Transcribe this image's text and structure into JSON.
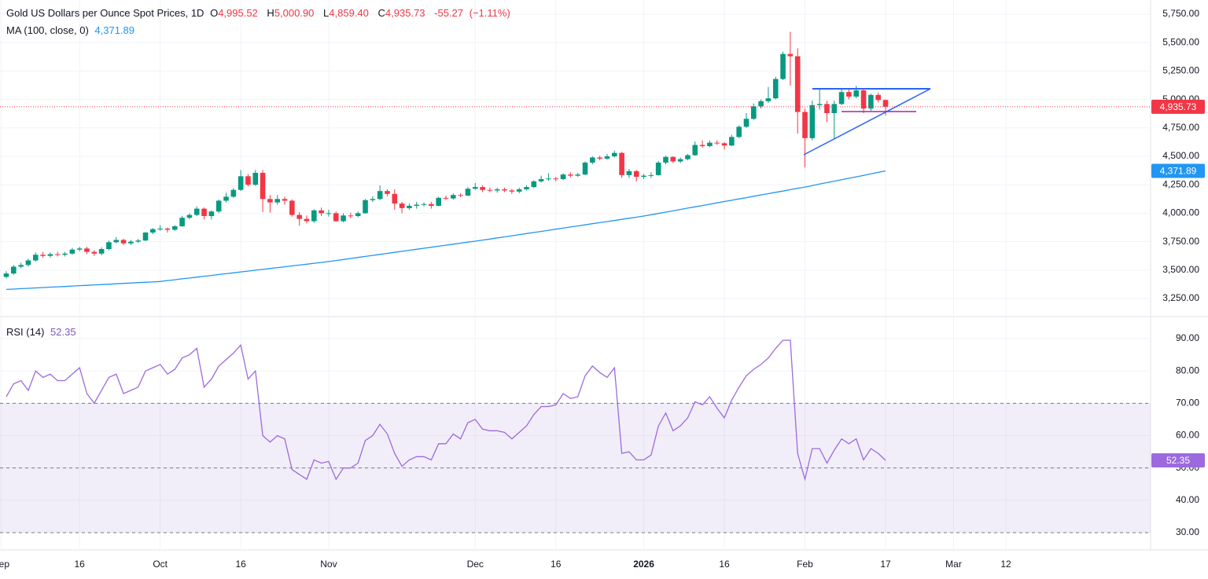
{
  "time_axis": {
    "x": [
      "Sep 2",
      "Sep 3",
      "Sep 4",
      "Sep 5",
      "Sep 8",
      "Sep 9",
      "Sep 10",
      "Sep 11",
      "Sep 12",
      "Sep 15",
      "Sep 16",
      "Sep 17",
      "Sep 18",
      "Sep 19",
      "Sep 22",
      "Sep 23",
      "Sep 24",
      "Sep 25",
      "Sep 26",
      "Sep 29",
      "Sep 30",
      "Oct 1",
      "Oct 2",
      "Oct 3",
      "Oct 6",
      "Oct 7",
      "Oct 8",
      "Oct 9",
      "Oct 10",
      "Oct 13",
      "Oct 14",
      "Oct 15",
      "Oct 16",
      "Oct 17",
      "Oct 20",
      "Oct 21",
      "Oct 22",
      "Oct 23",
      "Oct 24",
      "Oct 27",
      "Oct 28",
      "Oct 29",
      "Oct 30",
      "Oct 31",
      "Nov 3",
      "Nov 4",
      "Nov 5",
      "Nov 6",
      "Nov 7",
      "Nov 10",
      "Nov 11",
      "Nov 12",
      "Nov 13",
      "Nov 14",
      "Nov 17",
      "Nov 18",
      "Nov 19",
      "Nov 20",
      "Nov 21",
      "Nov 24",
      "Nov 25",
      "Nov 26",
      "Nov 27",
      "Nov 28",
      "Dec 1",
      "Dec 2",
      "Dec 3",
      "Dec 4",
      "Dec 5",
      "Dec 8",
      "Dec 9",
      "Dec 10",
      "Dec 11",
      "Dec 12",
      "Dec 15",
      "Dec 16",
      "Dec 17",
      "Dec 18",
      "Dec 19",
      "Dec 22",
      "Dec 23",
      "Dec 24",
      "Dec 25",
      "Dec 26",
      "Dec 29",
      "Dec 30",
      "Dec 31",
      "Jan 1",
      "Jan 2",
      "Jan 5",
      "Jan 6",
      "Jan 7",
      "Jan 8",
      "Jan 9",
      "Jan 12",
      "Jan 13",
      "Jan 14",
      "Jan 15",
      "Jan 16",
      "Jan 19",
      "Jan 20",
      "Jan 21",
      "Jan 22",
      "Jan 23",
      "Jan 26",
      "Jan 27",
      "Jan 28",
      "Jan 29",
      "Jan 30",
      "Feb 2",
      "Feb 3",
      "Feb 4",
      "Feb 5",
      "Feb 6",
      "Feb 9",
      "Feb 10",
      "Feb 11",
      "Feb 12",
      "Feb 13",
      "Feb 16",
      "Feb 17"
    ],
    "xticks": [
      {
        "value": "Sep 1",
        "label": "Sep"
      },
      {
        "value": "Sep 16",
        "label": "16"
      },
      {
        "value": "Oct 1",
        "label": "Oct"
      },
      {
        "value": "Oct 16",
        "label": "16"
      },
      {
        "value": "Nov 3",
        "label": "Nov"
      },
      {
        "value": "Dec 1",
        "label": "Dec"
      },
      {
        "value": "Dec 16",
        "label": "16"
      },
      {
        "value": "Jan 1",
        "label": "2026",
        "bold": true
      },
      {
        "value": "Jan 16",
        "label": "16"
      },
      {
        "value": "Feb 2",
        "label": "Feb"
      },
      {
        "value": "Feb 17",
        "label": "17"
      },
      {
        "value": "Mar 2",
        "label": "Mar"
      },
      {
        "value": "Mar 12",
        "label": "12"
      }
    ]
  },
  "chart_data": [
    {
      "type": "candlestick",
      "title": "Gold US Dollars per Ounce Spot Prices, 1D",
      "legend": {
        "items": [
          {
            "key": "O",
            "label": "4,995.52"
          },
          {
            "key": "H",
            "label": "5,000.90"
          },
          {
            "key": "L",
            "label": "4,859.40"
          },
          {
            "key": "C",
            "label": "4,935.73"
          }
        ],
        "change": "-55.27",
        "change_pct": "(−1.11%)"
      },
      "up_color": "#089981",
      "down_color": "#f23645",
      "last_label": "4,935.73",
      "grid": true,
      "open": [
        3440,
        3470,
        3530,
        3545,
        3585,
        3635,
        3625,
        3640,
        3635,
        3645,
        3680,
        3690,
        3660,
        3645,
        3685,
        3745,
        3765,
        3735,
        3750,
        3760,
        3830,
        3860,
        3865,
        3855,
        3885,
        3960,
        3985,
        4040,
        3975,
        4015,
        4110,
        4145,
        4205,
        4325,
        4250,
        4355,
        4125,
        4095,
        4125,
        4110,
        3985,
        3950,
        3930,
        4025,
        4000,
        4000,
        3930,
        3980,
        3975,
        4000,
        4115,
        4125,
        4195,
        4170,
        4085,
        4045,
        4065,
        4075,
        4080,
        4065,
        4135,
        4130,
        4160,
        4155,
        4215,
        4230,
        4205,
        4200,
        4210,
        4200,
        4190,
        4210,
        4230,
        4280,
        4300,
        4305,
        4300,
        4340,
        4330,
        4340,
        4445,
        4490,
        4480,
        4500,
        4530,
        4335,
        4370,
        4320,
        4330,
        4335,
        4445,
        4495,
        4455,
        4475,
        4510,
        4600,
        4590,
        4620,
        4615,
        4595,
        4670,
        4760,
        4830,
        4940,
        4985,
        5010,
        5180,
        5400,
        5380,
        4890,
        4660,
        4950,
        4960,
        4880,
        4960,
        5065,
        5025,
        5080,
        4920,
        5040,
        4995.52
      ],
      "high": [
        3490,
        3545,
        3565,
        3600,
        3655,
        3660,
        3655,
        3660,
        3660,
        3695,
        3705,
        3705,
        3675,
        3700,
        3760,
        3790,
        3775,
        3765,
        3775,
        3835,
        3870,
        3895,
        3875,
        3895,
        3975,
        4000,
        4060,
        4050,
        4025,
        4120,
        4180,
        4220,
        4380,
        4345,
        4380,
        4380,
        4160,
        4160,
        4145,
        4120,
        4010,
        3980,
        4035,
        4050,
        4030,
        4015,
        4000,
        4005,
        4015,
        4125,
        4150,
        4245,
        4210,
        4210,
        4100,
        4085,
        4100,
        4095,
        4100,
        4145,
        4155,
        4175,
        4175,
        4230,
        4265,
        4245,
        4225,
        4225,
        4225,
        4215,
        4225,
        4245,
        4290,
        4330,
        4350,
        4320,
        4350,
        4360,
        4355,
        4455,
        4500,
        4505,
        4520,
        4550,
        4540,
        4390,
        4380,
        4345,
        4360,
        4460,
        4505,
        4500,
        4490,
        4520,
        4630,
        4640,
        4640,
        4640,
        4625,
        4690,
        4770,
        4880,
        4965,
        5000,
        5110,
        5200,
        5420,
        5595,
        5450,
        4920,
        4990,
        5090,
        4990,
        4990,
        5090,
        5100,
        5120,
        5090,
        5050,
        5060,
        5000.9
      ],
      "low": [
        3425,
        3460,
        3515,
        3530,
        3575,
        3610,
        3610,
        3620,
        3620,
        3635,
        3665,
        3640,
        3625,
        3630,
        3675,
        3735,
        3720,
        3720,
        3740,
        3755,
        3815,
        3845,
        3830,
        3845,
        3880,
        3945,
        3975,
        3945,
        3945,
        4000,
        4095,
        4135,
        4195,
        4235,
        4240,
        4010,
        4005,
        4075,
        4075,
        3970,
        3890,
        3910,
        3915,
        3975,
        3970,
        3925,
        3920,
        3955,
        3965,
        3995,
        4100,
        4115,
        4150,
        4030,
        4000,
        4030,
        4040,
        4060,
        4040,
        4060,
        4115,
        4120,
        4140,
        4150,
        4205,
        4185,
        4185,
        4180,
        4185,
        4170,
        4175,
        4200,
        4220,
        4270,
        4285,
        4280,
        4290,
        4315,
        4320,
        4335,
        4430,
        4465,
        4470,
        4490,
        4310,
        4310,
        4280,
        4300,
        4310,
        4330,
        4430,
        4440,
        4440,
        4465,
        4505,
        4575,
        4580,
        4600,
        4560,
        4590,
        4660,
        4750,
        4820,
        4920,
        4970,
        5000,
        5170,
        5120,
        4700,
        4402,
        4640,
        4910,
        4800,
        4655,
        4950,
        5000,
        5010,
        4880,
        4900,
        4975,
        4859.4
      ],
      "close": [
        3470,
        3530,
        3545,
        3585,
        3635,
        3625,
        3640,
        3635,
        3645,
        3680,
        3690,
        3660,
        3645,
        3685,
        3745,
        3765,
        3735,
        3750,
        3760,
        3830,
        3860,
        3865,
        3855,
        3885,
        3960,
        3985,
        4040,
        3975,
        4015,
        4110,
        4145,
        4205,
        4325,
        4250,
        4355,
        4125,
        4095,
        4125,
        4110,
        3985,
        3950,
        3930,
        4025,
        4000,
        4000,
        3930,
        3980,
        3975,
        4000,
        4115,
        4125,
        4195,
        4170,
        4085,
        4045,
        4065,
        4075,
        4080,
        4065,
        4135,
        4130,
        4160,
        4155,
        4215,
        4230,
        4205,
        4200,
        4210,
        4200,
        4190,
        4210,
        4230,
        4280,
        4300,
        4305,
        4300,
        4340,
        4330,
        4340,
        4445,
        4490,
        4480,
        4500,
        4530,
        4335,
        4370,
        4320,
        4330,
        4335,
        4445,
        4495,
        4455,
        4475,
        4510,
        4600,
        4590,
        4620,
        4615,
        4595,
        4670,
        4760,
        4830,
        4940,
        4985,
        5010,
        5180,
        5400,
        5380,
        4890,
        4660,
        4950,
        4960,
        4880,
        4960,
        5065,
        5025,
        5080,
        4920,
        5040,
        4995,
        4935.73
      ],
      "series": [
        {
          "name": "MA (100, close, 0)",
          "color": "#2196f3",
          "value_label": "4,371.89",
          "values": [
            3330,
            3333,
            3337,
            3340,
            3343,
            3347,
            3350,
            3353,
            3356,
            3360,
            3363,
            3366,
            3370,
            3373,
            3376,
            3380,
            3383,
            3386,
            3390,
            3393,
            3396,
            3400,
            3408,
            3415,
            3423,
            3430,
            3438,
            3446,
            3453,
            3461,
            3468,
            3476,
            3484,
            3491,
            3499,
            3506,
            3514,
            3522,
            3529,
            3537,
            3544,
            3552,
            3560,
            3567,
            3575,
            3584,
            3593,
            3602,
            3611,
            3620,
            3629,
            3638,
            3647,
            3656,
            3665,
            3674,
            3683,
            3692,
            3701,
            3710,
            3719,
            3728,
            3737,
            3746,
            3754,
            3764,
            3773,
            3783,
            3792,
            3802,
            3812,
            3821,
            3831,
            3840,
            3850,
            3860,
            3869,
            3879,
            3888,
            3898,
            3908,
            3917,
            3927,
            3936,
            3946,
            3956,
            3965,
            3975,
            3987,
            3998,
            4010,
            4021,
            4033,
            4045,
            4056,
            4068,
            4079,
            4091,
            4103,
            4114,
            4126,
            4137,
            4149,
            4161,
            4172,
            4184,
            4195,
            4207,
            4219,
            4230,
            4243,
            4256,
            4269,
            4282,
            4295,
            4307,
            4320,
            4333,
            4346,
            4359,
            4371.89
          ]
        }
      ],
      "ylim": [
        3250,
        5750
      ],
      "yticks": [
        {
          "value": 3250,
          "label": "3,250.00"
        },
        {
          "value": 3500,
          "label": "3,500.00"
        },
        {
          "value": 3750,
          "label": "3,750.00"
        },
        {
          "value": 4000,
          "label": "4,000.00"
        },
        {
          "value": 4250,
          "label": "4,250.00"
        },
        {
          "value": 4500,
          "label": "4,500.00"
        },
        {
          "value": 4750,
          "label": "4,750.00"
        },
        {
          "value": 5000,
          "label": "5,000.00"
        },
        {
          "value": 5250,
          "label": "5,250.00"
        },
        {
          "value": 5500,
          "label": "5,500.00"
        },
        {
          "value": 5750,
          "label": "5,750.00"
        }
      ]
    },
    {
      "type": "line",
      "band": [
        30,
        70
      ],
      "midline": 50,
      "band_color": "#7e57c2",
      "grid": true,
      "series": [
        {
          "name": "RSI (14)",
          "color": "#9c6ade",
          "value_label": "52.35",
          "values": [
            72,
            76,
            77,
            74,
            80,
            78,
            79,
            77,
            77,
            79,
            81,
            73,
            70,
            74,
            78,
            79,
            73,
            74,
            75,
            80,
            81,
            82,
            79,
            80.5,
            84,
            85,
            87,
            75,
            77.5,
            81.5,
            83.5,
            85.5,
            88,
            77.5,
            80,
            60,
            58,
            60,
            59,
            49.5,
            48,
            46.5,
            52.5,
            51.5,
            52,
            46.5,
            50,
            50,
            51.5,
            58.5,
            60,
            63.5,
            60.5,
            54.5,
            50.5,
            52.5,
            53.5,
            53.5,
            52.5,
            57.5,
            57.5,
            60.5,
            59,
            64,
            65,
            62,
            61.5,
            61.5,
            61,
            59,
            61,
            63,
            66.5,
            69,
            69,
            69.5,
            73,
            71.5,
            72,
            78.5,
            81.5,
            79.5,
            78,
            81,
            54.5,
            55,
            52.5,
            52.5,
            54,
            63,
            67,
            61.5,
            63,
            65.5,
            70.5,
            69.5,
            72,
            68.5,
            65.5,
            71,
            75,
            78.5,
            80.5,
            82,
            84,
            87,
            89.5,
            89.5,
            54.5,
            46.5,
            56,
            56,
            51.5,
            55.5,
            59,
            57.5,
            59,
            52.5,
            56,
            54.5,
            52.35
          ]
        }
      ],
      "ylim": [
        30,
        90
      ],
      "yticks": [
        {
          "value": 30,
          "label": "30.00"
        },
        {
          "value": 40,
          "label": "40.00"
        },
        {
          "value": 50,
          "label": "50.00"
        },
        {
          "value": 60,
          "label": "60.00"
        },
        {
          "value": 70,
          "label": "70.00"
        },
        {
          "value": 80,
          "label": "80.00"
        },
        {
          "value": 90,
          "label": "90.00"
        }
      ]
    }
  ]
}
